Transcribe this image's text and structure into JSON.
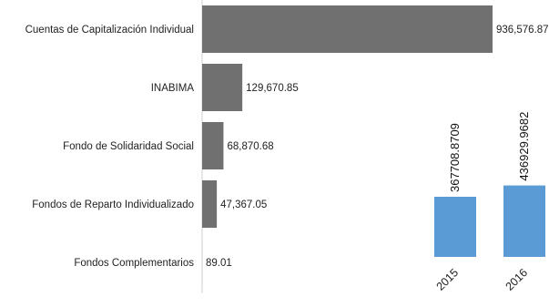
{
  "chart_data": [
    {
      "type": "bar",
      "orientation": "horizontal",
      "categories": [
        "Cuentas de Capitalización Individual",
        "INABIMA",
        "Fondo de Solidaridad Social",
        "Fondos de Reparto Individualizado",
        "Fondos Complementarios"
      ],
      "values": [
        936576.87,
        129670.85,
        68870.68,
        47367.05,
        89.01
      ],
      "value_labels": [
        "936,576.87",
        "129,670.85",
        "68,870.68",
        "47,367.05",
        "89.01"
      ],
      "xlim": [
        0,
        936576.87
      ],
      "grid": false,
      "colors": {
        "bar": "#707070"
      }
    },
    {
      "type": "bar",
      "orientation": "vertical",
      "categories": [
        "2015",
        "2016"
      ],
      "values": [
        367708.8709,
        436929.9682
      ],
      "value_labels": [
        "367708.8709",
        "436929.9682"
      ],
      "ylim": [
        0,
        2750000
      ],
      "grid": false,
      "colors": {
        "bar": "#5b9bd5"
      }
    }
  ]
}
